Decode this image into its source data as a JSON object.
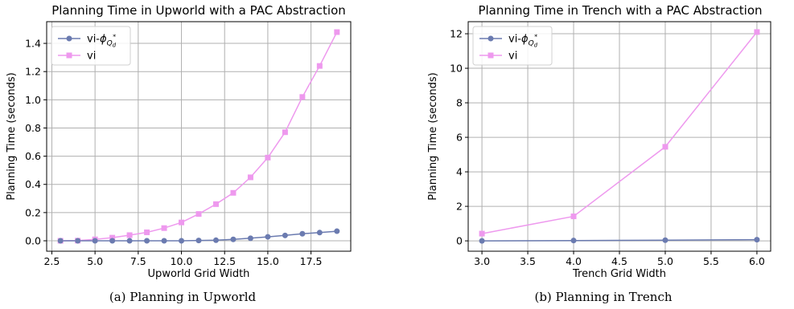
{
  "chart_data": [
    {
      "type": "line",
      "title": "Planning Time in Upworld with a PAC Abstraction",
      "xlabel": "Upworld Grid Width",
      "ylabel": "Planning Time (seconds)",
      "caption": "(a) Planning in Upworld",
      "xlim": [
        2.2,
        19.8
      ],
      "ylim": [
        -0.074,
        1.554
      ],
      "xticks": [
        2.5,
        5.0,
        7.5,
        10.0,
        12.5,
        15.0,
        17.5
      ],
      "xtick_labels": [
        "2.5",
        "5.0",
        "7.5",
        "10.0",
        "12.5",
        "15.0",
        "17.5"
      ],
      "yticks": [
        0.0,
        0.2,
        0.4,
        0.6,
        0.8,
        1.0,
        1.2,
        1.4
      ],
      "ytick_labels": [
        "0.0",
        "0.2",
        "0.4",
        "0.6",
        "0.8",
        "1.0",
        "1.2",
        "1.4"
      ],
      "grid": true,
      "legend_position": "top-left",
      "series": [
        {
          "name": "vi-ϕQd*",
          "legend_base": "vi-",
          "legend_phi": "ϕ",
          "legend_sub": "Q",
          "legend_subsub": "d",
          "legend_sup": "*",
          "color": "#6b7bb0",
          "marker": "circle",
          "x": [
            3,
            4,
            5,
            6,
            7,
            8,
            9,
            10,
            11,
            12,
            13,
            14,
            15,
            16,
            17,
            18,
            19
          ],
          "y": [
            0.0,
            0.0,
            0.0,
            0.0,
            0.0,
            0.0,
            0.0,
            0.0,
            0.002,
            0.004,
            0.01,
            0.018,
            0.028,
            0.038,
            0.05,
            0.058,
            0.068
          ]
        },
        {
          "name": "vi",
          "color": "#ee99ee",
          "marker": "square",
          "x": [
            3,
            4,
            5,
            6,
            7,
            8,
            9,
            10,
            11,
            12,
            13,
            14,
            15,
            16,
            17,
            18,
            19
          ],
          "y": [
            0.0,
            0.001,
            0.01,
            0.022,
            0.04,
            0.06,
            0.09,
            0.13,
            0.19,
            0.26,
            0.34,
            0.45,
            0.59,
            0.77,
            1.02,
            1.24,
            1.48
          ]
        }
      ]
    },
    {
      "type": "line",
      "title": "Planning Time in Trench with a PAC Abstraction",
      "xlabel": "Trench Grid Width",
      "ylabel": "Planning Time (seconds)",
      "caption": "(b) Planning in Trench",
      "xlim": [
        2.85,
        6.15
      ],
      "ylim": [
        -0.6,
        12.7
      ],
      "xticks": [
        3.0,
        3.5,
        4.0,
        4.5,
        5.0,
        5.5,
        6.0
      ],
      "xtick_labels": [
        "3.0",
        "3.5",
        "4.0",
        "4.5",
        "5.0",
        "5.5",
        "6.0"
      ],
      "yticks": [
        0,
        2,
        4,
        6,
        8,
        10,
        12
      ],
      "ytick_labels": [
        "0",
        "2",
        "4",
        "6",
        "8",
        "10",
        "12"
      ],
      "grid": true,
      "legend_position": "top-left",
      "series": [
        {
          "name": "vi-ϕQd*",
          "legend_base": "vi-",
          "legend_phi": "ϕ",
          "legend_sub": "Q",
          "legend_subsub": "d",
          "legend_sup": "*",
          "color": "#6b7bb0",
          "marker": "circle",
          "x": [
            3,
            4,
            5,
            6
          ],
          "y": [
            0.0,
            0.02,
            0.04,
            0.07
          ]
        },
        {
          "name": "vi",
          "color": "#ee99ee",
          "marker": "square",
          "x": [
            3,
            4,
            5,
            6
          ],
          "y": [
            0.42,
            1.42,
            5.45,
            12.1
          ]
        }
      ]
    }
  ]
}
